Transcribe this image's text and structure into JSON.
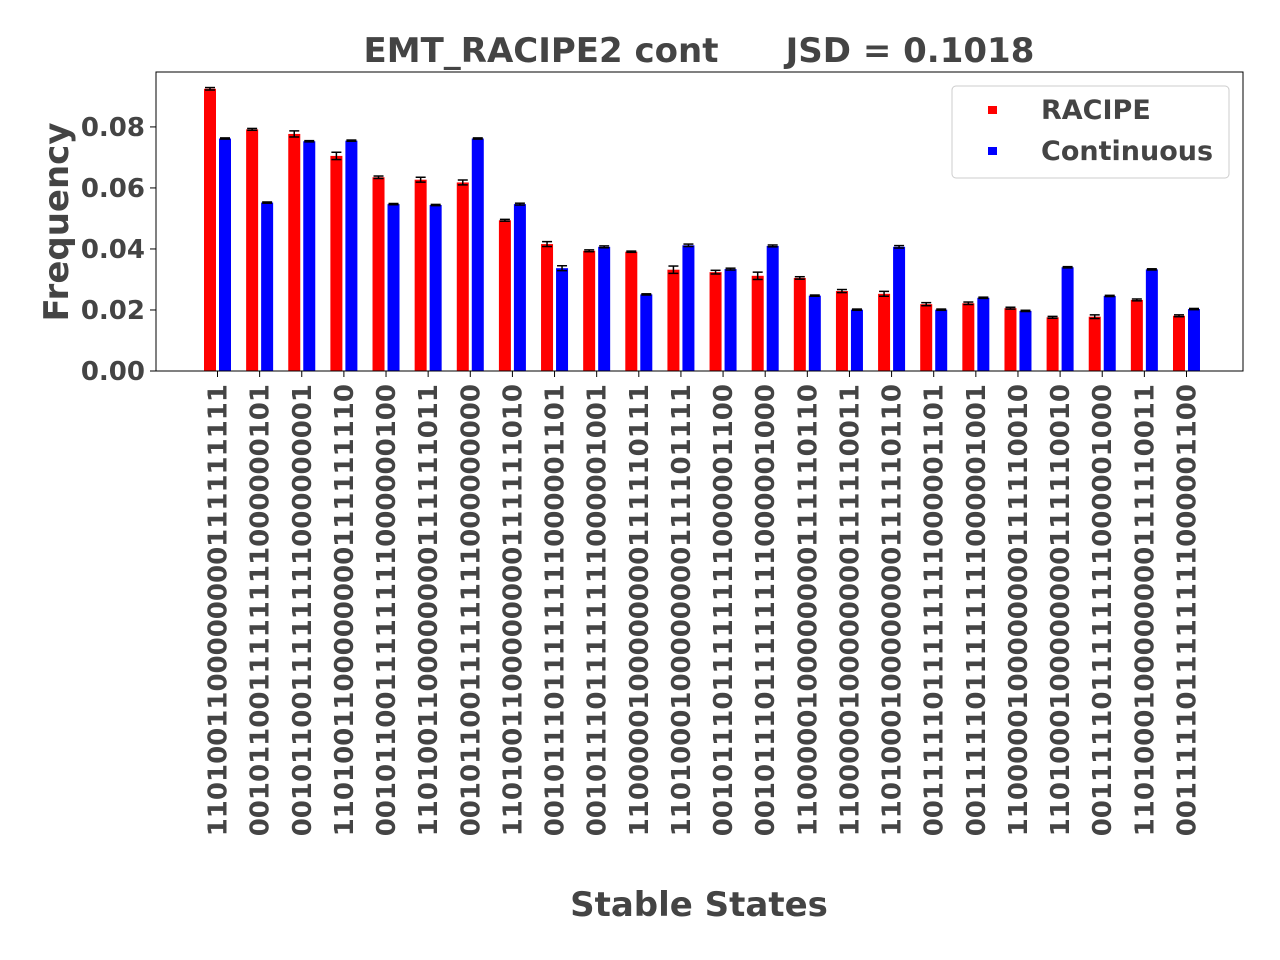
{
  "chart_data": {
    "type": "bar",
    "title": "EMT_RACIPE2 cont",
    "subtitle": "JSD = 0.1018",
    "xlabel": "Stable States",
    "ylabel": "Frequency",
    "ylim": [
      0,
      0.098
    ],
    "yticks": [
      "0.00",
      "0.02",
      "0.04",
      "0.06",
      "0.08"
    ],
    "ytick_values": [
      0,
      0.02,
      0.04,
      0.06,
      0.08
    ],
    "grid": false,
    "legend_position": "top-right",
    "categories": [
      "1101001100000000111111111",
      "0010110011111111000000101",
      "0010110011111111000000001",
      "1101001100000000111111110",
      "0010110011111111000000100",
      "1101001100000000111111011",
      "0010110011111111000000000",
      "1101001100000000111111010",
      "0010111011111111000001101",
      "0010111011111111000001001",
      "1100000100000000111110111",
      "1101000100000000111101111",
      "0010111011111111000001100",
      "0010111011111111000001000",
      "1100000100000000111110110",
      "1100000100000000111110011",
      "1101000100000000111110110",
      "0011111011111111000001101",
      "0011111011111111000001001",
      "1100000100000000111110010",
      "1101000100000000111110010",
      "0011111011111111000001000",
      "1101000100000000111110011",
      "0011111011111111000001100"
    ],
    "series": [
      {
        "name": "RACIPE",
        "color": "#ff0000",
        "values": [
          0.0925,
          0.0792,
          0.0777,
          0.0705,
          0.0635,
          0.0627,
          0.0618,
          0.0494,
          0.0416,
          0.0394,
          0.0391,
          0.0332,
          0.0324,
          0.0312,
          0.0305,
          0.0262,
          0.0253,
          0.0219,
          0.0222,
          0.0206,
          0.0176,
          0.0178,
          0.0233,
          0.0181
        ],
        "errors": [
          0.0004,
          0.0003,
          0.001,
          0.0012,
          0.0004,
          0.0008,
          0.0008,
          0.0003,
          0.0008,
          0.0003,
          0.0002,
          0.0012,
          0.0006,
          0.0012,
          0.0004,
          0.0005,
          0.0008,
          0.0005,
          0.0004,
          0.0003,
          0.0003,
          0.0006,
          0.0003,
          0.0003
        ]
      },
      {
        "name": "Continuous",
        "color": "#0000ff",
        "values": [
          0.0762,
          0.0552,
          0.0753,
          0.0755,
          0.0547,
          0.0544,
          0.0762,
          0.0547,
          0.0337,
          0.0407,
          0.0251,
          0.0412,
          0.0334,
          0.041,
          0.0247,
          0.0201,
          0.0407,
          0.0201,
          0.024,
          0.0197,
          0.034,
          0.0246,
          0.0333,
          0.0203
        ],
        "errors": [
          0.0002,
          0.0002,
          0.0002,
          0.0002,
          0.0002,
          0.0002,
          0.0002,
          0.0003,
          0.0008,
          0.0003,
          0.0002,
          0.0004,
          0.0003,
          0.0003,
          0.0002,
          0.0002,
          0.0004,
          0.0002,
          0.0002,
          0.0002,
          0.0002,
          0.0002,
          0.0002,
          0.0002
        ]
      }
    ]
  }
}
